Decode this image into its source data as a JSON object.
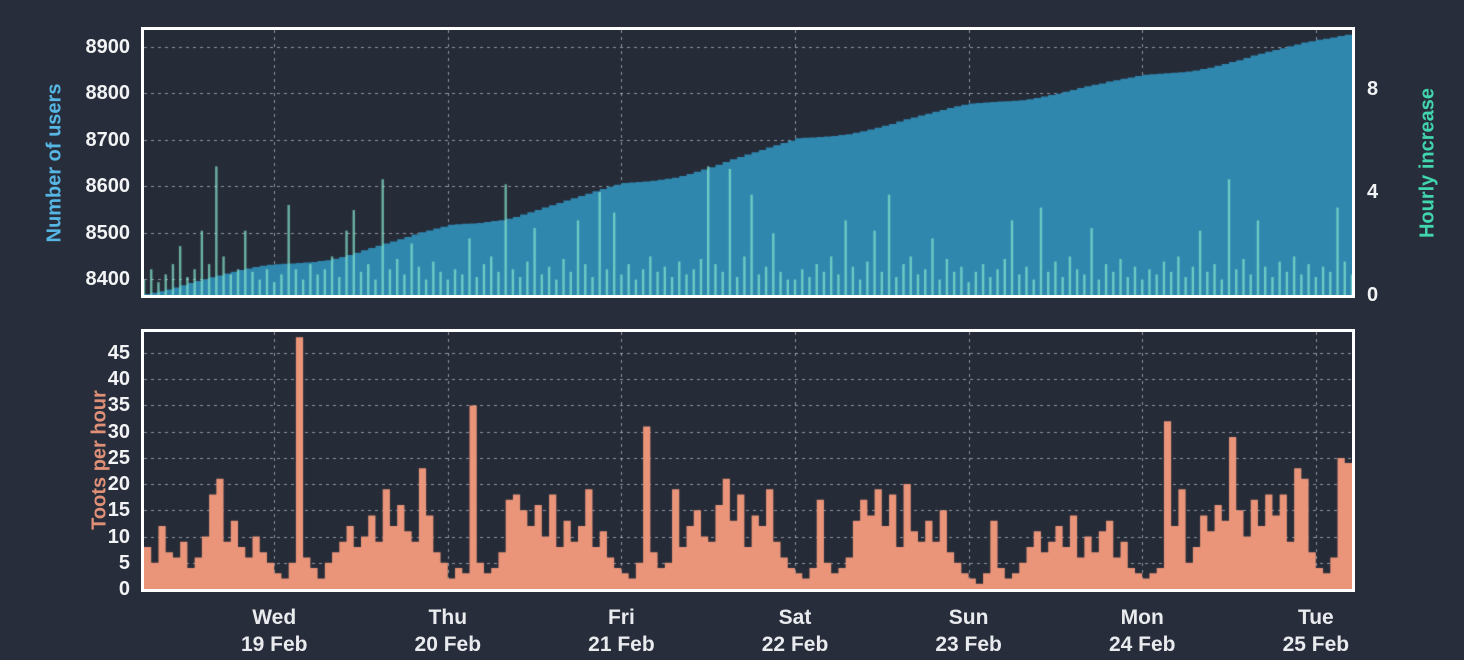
{
  "theme": {
    "background": "#282d3b",
    "plot_border": "#ffffff",
    "grid_color": "rgba(232,234,240,0.55)",
    "tick_text_color": "#f2f3f5",
    "day_label_color": "#e9ebee"
  },
  "x_axis": {
    "points": 168,
    "day_tick_indices": [
      18,
      42,
      66,
      90,
      114,
      138,
      162
    ],
    "day_labels": [
      {
        "day": "Wed",
        "date": "19 Feb"
      },
      {
        "day": "Thu",
        "date": "20 Feb"
      },
      {
        "day": "Fri",
        "date": "21 Feb"
      },
      {
        "day": "Sat",
        "date": "22 Feb"
      },
      {
        "day": "Sun",
        "date": "23 Feb"
      },
      {
        "day": "Mon",
        "date": "24 Feb"
      },
      {
        "day": "Tue",
        "date": "25 Feb"
      }
    ]
  },
  "chart_data": [
    {
      "id": "users-and-hourly-increase",
      "type": "area",
      "left_axis": {
        "label": "Number of users",
        "color": "#56b7e4",
        "ticks": [
          8400,
          8500,
          8600,
          8700,
          8800,
          8900
        ],
        "range": [
          8366,
          8936
        ]
      },
      "right_axis": {
        "label": "Hourly increase",
        "color": "#41d6ae",
        "ticks": [
          0,
          4,
          8
        ],
        "range": [
          0,
          10.3
        ]
      },
      "series": [
        {
          "name": "Number of users",
          "style": "step-area",
          "axis": "left",
          "color": "#2f87ae",
          "values": [
            8368,
            8371,
            8374,
            8378,
            8382,
            8387,
            8392,
            8396,
            8400,
            8404,
            8408,
            8412,
            8416,
            8420,
            8423,
            8426,
            8429,
            8431,
            8432,
            8433,
            8434,
            8435,
            8436,
            8437,
            8439,
            8441,
            8444,
            8448,
            8452,
            8457,
            8462,
            8467,
            8472,
            8477,
            8481,
            8486,
            8491,
            8496,
            8501,
            8505,
            8509,
            8513,
            8517,
            8518,
            8519,
            8520,
            8521,
            8523,
            8525,
            8527,
            8530,
            8534,
            8539,
            8544,
            8549,
            8554,
            8559,
            8564,
            8569,
            8574,
            8579,
            8584,
            8589,
            8594,
            8599,
            8603,
            8607,
            8608,
            8609,
            8610,
            8612,
            8614,
            8616,
            8618,
            8622,
            8626,
            8631,
            8636,
            8641,
            8646,
            8652,
            8658,
            8663,
            8668,
            8673,
            8678,
            8683,
            8688,
            8693,
            8698,
            8703,
            8704,
            8705,
            8706,
            8707,
            8708,
            8710,
            8712,
            8715,
            8718,
            8722,
            8726,
            8730,
            8734,
            8739,
            8744,
            8748,
            8752,
            8756,
            8760,
            8764,
            8768,
            8772,
            8775,
            8778,
            8779,
            8780,
            8781,
            8782,
            8783,
            8784,
            8785,
            8787,
            8790,
            8793,
            8796,
            8799,
            8803,
            8807,
            8811,
            8815,
            8818,
            8821,
            8825,
            8828,
            8831,
            8834,
            8837,
            8840,
            8841,
            8842,
            8843,
            8844,
            8845,
            8847,
            8849,
            8852,
            8855,
            8859,
            8863,
            8867,
            8871,
            8876,
            8881,
            8885,
            8889,
            8893,
            8897,
            8901,
            8905,
            8909,
            8912,
            8915,
            8917,
            8920,
            8923,
            8926,
            8930
          ]
        },
        {
          "name": "Hourly increase",
          "style": "bars",
          "axis": "right",
          "color": "rgba(133,228,204,0.72)",
          "values": [
            0.6,
            1,
            0.5,
            0.8,
            1.2,
            1.9,
            0.7,
            1,
            2.5,
            1.2,
            5,
            1.5,
            0.8,
            1,
            2.5,
            0.9,
            0.6,
            1,
            0.5,
            0.8,
            3.5,
            1,
            0.6,
            1.2,
            0.8,
            1,
            1.5,
            0.7,
            2.5,
            3.3,
            0.9,
            1.2,
            0.6,
            4.5,
            1,
            1.4,
            0.8,
            2,
            1.1,
            0.6,
            1.3,
            0.9,
            0.6,
            1,
            0.8,
            2.2,
            0.7,
            1.2,
            1.5,
            0.9,
            4.3,
            1,
            0.7,
            1.3,
            2.6,
            0.8,
            1.1,
            0.6,
            1.4,
            0.9,
            2.9,
            1.2,
            0.7,
            4,
            1,
            3.2,
            0.8,
            1.2,
            0.6,
            1,
            1.5,
            0.9,
            1.1,
            0.7,
            1.3,
            0.8,
            1,
            1.4,
            5,
            1.2,
            0.9,
            4.9,
            0.7,
            1.5,
            3.9,
            0.8,
            1.1,
            2.4,
            0.9,
            0.6,
            0.6,
            1,
            0.7,
            1.2,
            0.9,
            1.5,
            0.8,
            2.9,
            1.1,
            0.6,
            1.3,
            2.5,
            0.9,
            3.9,
            0.7,
            1.2,
            1.5,
            0.8,
            1,
            2.2,
            0.6,
            1.4,
            0.9,
            1.1,
            0.5,
            0.9,
            1.2,
            0.7,
            1,
            1.4,
            2.9,
            0.8,
            1.1,
            0.6,
            3.4,
            0.9,
            1.3,
            0.7,
            1.5,
            1,
            0.8,
            2.6,
            0.6,
            1.2,
            0.9,
            1.4,
            0.7,
            1.1,
            0.6,
            1,
            0.8,
            1.3,
            0.9,
            1.5,
            0.7,
            1.1,
            2.5,
            0.9,
            1.2,
            0.6,
            4.5,
            1,
            1.4,
            0.8,
            2.9,
            1.1,
            0.7,
            1.3,
            0.9,
            1.5,
            0.8,
            1.2,
            0.7,
            1.1,
            0.9,
            3.4,
            1.3,
            0.8
          ]
        }
      ]
    },
    {
      "id": "toots-per-hour",
      "type": "area",
      "left_axis": {
        "label": "Toots per hour",
        "color": "#e09077",
        "ticks": [
          0,
          5,
          10,
          15,
          20,
          25,
          30,
          35,
          40,
          45
        ],
        "range": [
          0,
          49
        ]
      },
      "series": [
        {
          "name": "Toots per hour",
          "style": "step-area",
          "axis": "left",
          "color": "#ea9579",
          "values": [
            8,
            5,
            12,
            7,
            6,
            9,
            4,
            6,
            10,
            18,
            21,
            9,
            13,
            8,
            6,
            10,
            7,
            5,
            3,
            2,
            5,
            48,
            6,
            4,
            2,
            5,
            7,
            9,
            12,
            8,
            10,
            14,
            9,
            19,
            12,
            16,
            11,
            9,
            23,
            14,
            7,
            5,
            2,
            4,
            3,
            35,
            5,
            3,
            4,
            7,
            17,
            18,
            15,
            12,
            16,
            10,
            18,
            8,
            13,
            9,
            12,
            19,
            8,
            11,
            6,
            4,
            3,
            2,
            5,
            31,
            7,
            4,
            5,
            19,
            8,
            12,
            15,
            10,
            9,
            16,
            21,
            13,
            18,
            8,
            14,
            12,
            19,
            9,
            6,
            4,
            3,
            2,
            4,
            17,
            5,
            3,
            4,
            6,
            13,
            17,
            14,
            19,
            12,
            18,
            8,
            20,
            11,
            9,
            13,
            9,
            15,
            7,
            5,
            3,
            2,
            1,
            3,
            13,
            4,
            2,
            3,
            5,
            8,
            11,
            7,
            9,
            12,
            8,
            14,
            6,
            10,
            7,
            11,
            13,
            6,
            9,
            4,
            3,
            2,
            3,
            4,
            32,
            12,
            19,
            5,
            8,
            14,
            11,
            16,
            13,
            29,
            15,
            10,
            17,
            12,
            18,
            14,
            18,
            9,
            23,
            21,
            7,
            4,
            3,
            6,
            25,
            24,
            10
          ]
        }
      ]
    }
  ]
}
